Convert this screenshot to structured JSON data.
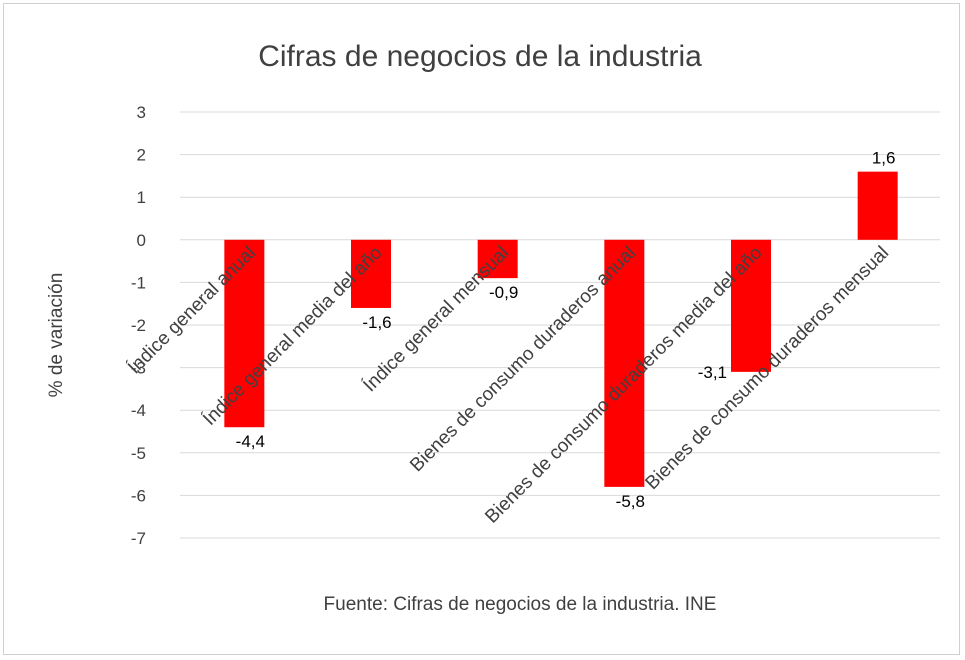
{
  "chart_data": {
    "type": "bar",
    "title": "Cifras de negocios de la industria",
    "xlabel": "Fuente: Cifras de negocios de la industria. INE",
    "ylabel": "% de variación",
    "categories": [
      "Índice general anual",
      "Índice general media del año",
      "Índice general mensual",
      "Bienes de consumo duraderos anual",
      "Bienes de consumo duraderos media del año",
      "Bienes de consumo duraderos mensual"
    ],
    "values": [
      -4.4,
      -1.6,
      -0.9,
      -5.8,
      -3.1,
      1.6
    ],
    "data_labels": [
      "-4,4",
      "-1,6",
      "-0,9",
      "-5,8",
      "-3,1",
      "1,6"
    ],
    "ylim": [
      -7,
      3
    ],
    "yticks": [
      3,
      2,
      1,
      0,
      -1,
      -2,
      -3,
      -4,
      -5,
      -6,
      -7
    ],
    "grid": true,
    "legend": "none",
    "colors": {
      "bar": "#ff0000",
      "grid": "#d9d9d9",
      "text": "#404040"
    }
  }
}
